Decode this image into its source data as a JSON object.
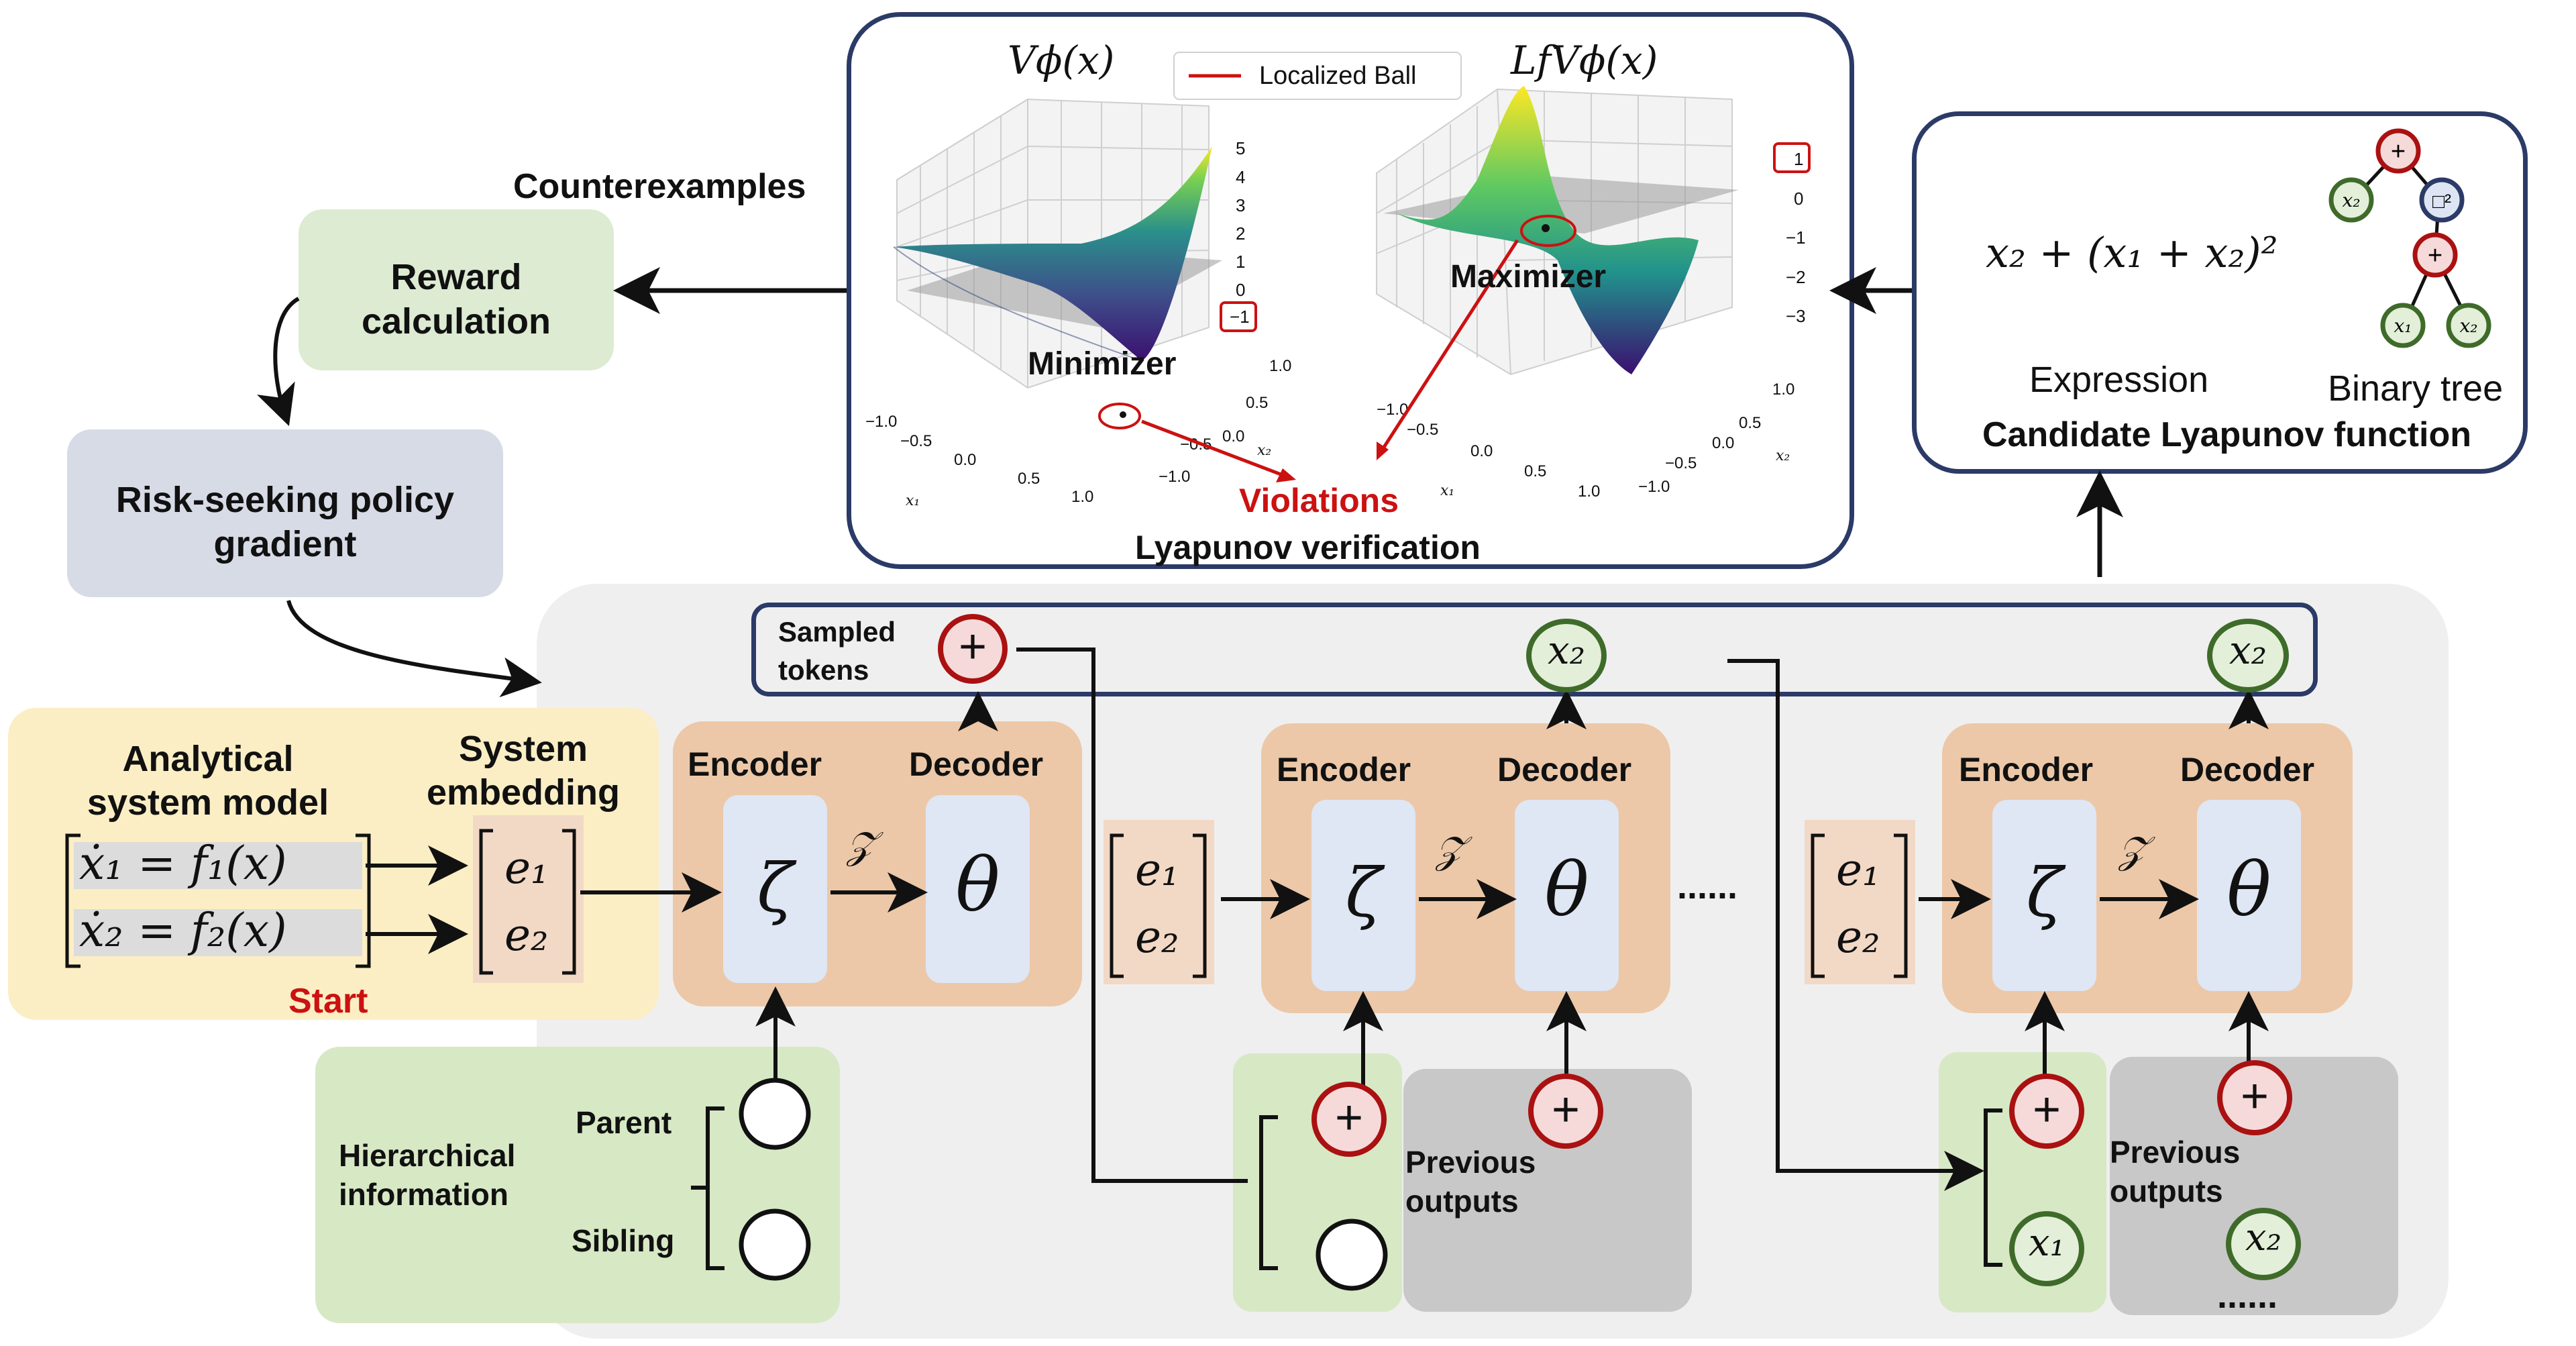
{
  "verification": {
    "title": "Lyapunov verification",
    "plot_left_title": "Vϕ(x)",
    "plot_right_title": "LfVϕ(x)",
    "legend_label": "Localized Ball",
    "minimizer_label": "Minimizer",
    "maximizer_label": "Maximizer",
    "violations_label": "Violations",
    "left_z_ticks": [
      "5",
      "4",
      "3",
      "2",
      "1",
      "0",
      "−1"
    ],
    "right_z_ticks": [
      "1",
      "0",
      "−1",
      "−2",
      "−3"
    ],
    "x1_ticks": [
      "−1.0",
      "−0.5",
      "0.0",
      "0.5",
      "1.0"
    ],
    "x2_ticks": [
      "1.0",
      "0.5",
      "0.0",
      "−0.5",
      "−1.0"
    ],
    "x1_axis": "x₁",
    "x2_axis": "x₂"
  },
  "counterexamples_label": "Counterexamples",
  "reward": {
    "label_line1": "Reward",
    "label_line2": "calculation"
  },
  "risk": {
    "label_line1": "Risk-seeking policy",
    "label_line2": "gradient"
  },
  "candidate": {
    "expression": "x₂ + (x₁ + x₂)²",
    "expression_caption": "Expression",
    "tree_caption": "Binary tree",
    "title": "Candidate Lyapunov function",
    "tree_nodes": {
      "root": "+",
      "left": "x₂",
      "square": "□²",
      "inner": "+",
      "leaf1": "x₁",
      "leaf2": "x₂"
    }
  },
  "system": {
    "title_line1": "Analytical",
    "title_line2": "system model",
    "eq1": "ẋ₁ = f₁(x)",
    "eq2": "ẋ₂ = f₂(x)",
    "start_label": "Start",
    "embedding_line1": "System",
    "embedding_line2": "embedding",
    "e1": "e₁",
    "e2": "e₂"
  },
  "sampled_tokens": {
    "label_line1": "Sampled",
    "label_line2": "tokens",
    "tokens": [
      "+",
      "x₂",
      "x₂"
    ]
  },
  "blocks": [
    {
      "encoder_label": "Encoder",
      "decoder_label": "Decoder",
      "encoder_symbol": "ζ",
      "decoder_symbol": "θ",
      "latent": "𝒵"
    },
    {
      "encoder_label": "Encoder",
      "decoder_label": "Decoder",
      "encoder_symbol": "ζ",
      "decoder_symbol": "θ",
      "latent": "𝒵"
    },
    {
      "encoder_label": "Encoder",
      "decoder_label": "Decoder",
      "encoder_symbol": "ζ",
      "decoder_symbol": "θ",
      "latent": "𝒵"
    }
  ],
  "hierarchical": {
    "label_line1": "Hierarchical",
    "label_line2": "information",
    "parent_label": "Parent",
    "sibling_label": "Sibling"
  },
  "previous_outputs": {
    "label_line1": "Previous",
    "label_line2": "outputs"
  },
  "step2": {
    "parent_token": "+",
    "previous_token": "+"
  },
  "step3": {
    "parent_token": "+",
    "sibling_token": "x₁",
    "previous_tokens": [
      "+",
      "x₂"
    ]
  },
  "ellipsis": "......",
  "ellipsis_bottom": "......",
  "colors": {
    "accent_red": "#cc1111",
    "navy": "#2b3a67",
    "orange_block": "#ecc8a8",
    "blue_cell": "#dfe6f4",
    "green": "#d7e8c5",
    "cream": "#fbeec4",
    "gray_panel": "#efefef"
  }
}
